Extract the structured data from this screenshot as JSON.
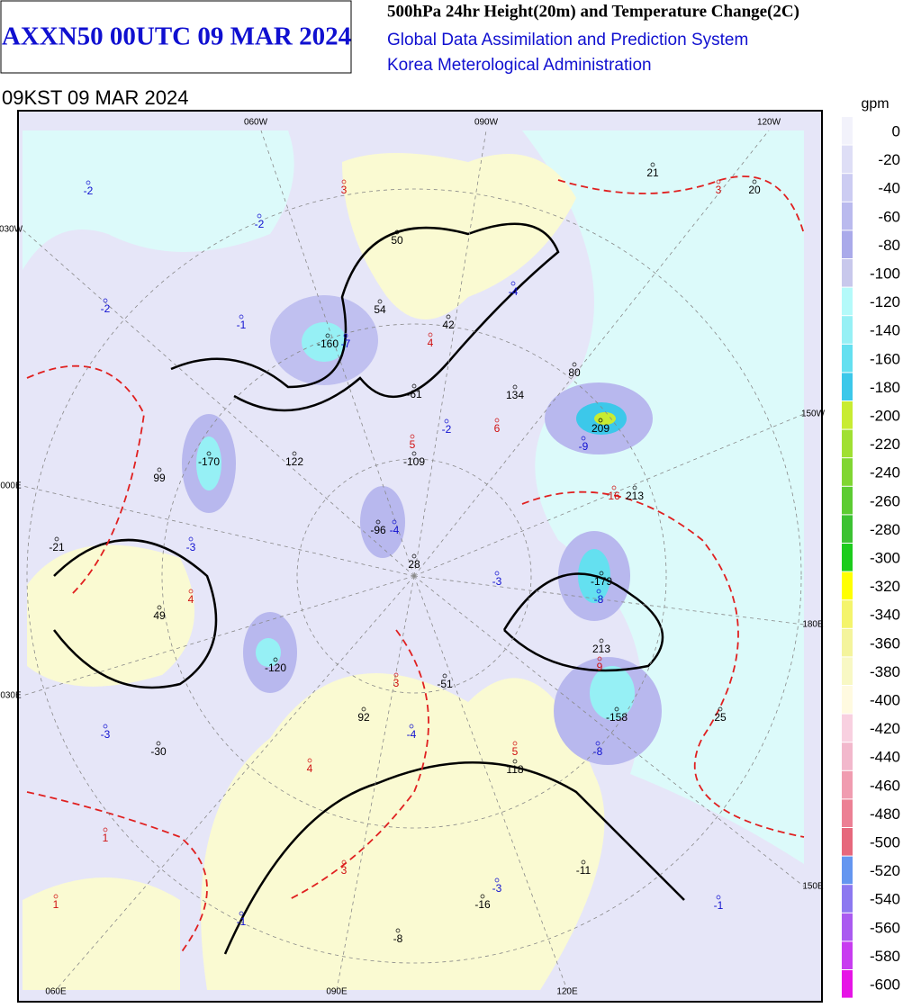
{
  "header": {
    "box_title": "AXXN50 00UTC 09 MAR 2024",
    "title": "500hPa 24hr Height(20m) and Temperature Change(2C)",
    "org_1": "Global Data Assimilation and Prediction System",
    "org_2": "Korea Meterological Administration",
    "valid_time": "09KST 09 MAR 2024"
  },
  "legend": {
    "unit": "gpm",
    "levels": [
      0,
      -20,
      -40,
      -60,
      -80,
      -100,
      -120,
      -140,
      -160,
      -180,
      -200,
      -220,
      -240,
      -260,
      -280,
      -300,
      -320,
      -340,
      -360,
      -380,
      -400,
      -420,
      -440,
      -460,
      -480,
      -500,
      -520,
      -540,
      -560,
      -580,
      -600
    ],
    "colors": [
      "#f2f2fb",
      "#dedef6",
      "#ccccf2",
      "#babaee",
      "#aaaaea",
      "#c8c8ec",
      "#b4fafa",
      "#96f0f5",
      "#64e0f0",
      "#3cc8ea",
      "#c8ec32",
      "#a0e032",
      "#80d632",
      "#5ccc32",
      "#3cc232",
      "#1ccc1c",
      "#ffff00",
      "#f4f46c",
      "#f4f49c",
      "#f8f8c4",
      "#fffae0",
      "#f8d0e0",
      "#f2b8cc",
      "#f09cb0",
      "#ec8094",
      "#e6687c",
      "#6496f0",
      "#8c78f0",
      "#aa5af0",
      "#c83cf0",
      "#e614e6"
    ]
  },
  "map": {
    "grid_labels": [
      "060W",
      "090W",
      "120W",
      "150W",
      "180E",
      "150E",
      "060E",
      "090E",
      "120E",
      "030W",
      "000E",
      "030E"
    ],
    "height_labels": [
      "21",
      "20",
      "50",
      "54",
      "42",
      "-160",
      "134",
      "80",
      "-61",
      "209",
      "122",
      "-109",
      "213",
      "-170",
      "99",
      "-96",
      "-21",
      "28",
      "-179",
      "49",
      "-120",
      "-51",
      "213",
      "92",
      "-158",
      "25",
      "-30",
      "118",
      "-11",
      "-16",
      "-8"
    ],
    "temp_minus_labels": [
      "-2",
      "-2",
      "-2",
      "-1",
      "-4",
      "-7",
      "-2",
      "-9",
      "-3",
      "-4",
      "-3",
      "-8",
      "-3",
      "-4",
      "-8",
      "-3",
      "-1",
      "-1"
    ],
    "temp_plus_labels": [
      "3",
      "3",
      "4",
      "5",
      "6",
      "16",
      "4",
      "3",
      "9",
      "4",
      "5",
      "1",
      "3",
      "1"
    ]
  }
}
